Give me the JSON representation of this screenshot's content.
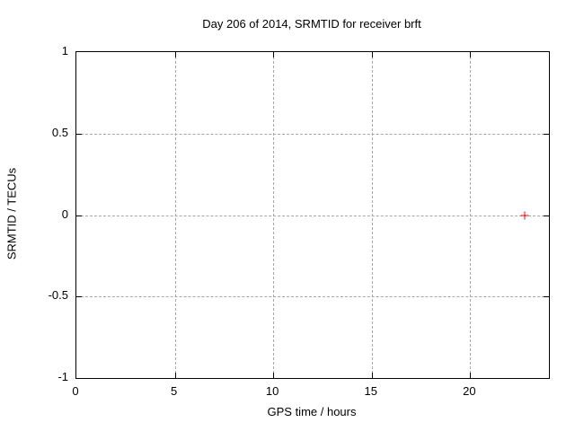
{
  "chart_data": {
    "type": "scatter",
    "title": "Day 206 of 2014, SRMTID for receiver brft",
    "xlabel": "GPS time / hours",
    "ylabel": "SRMTID / TECUs",
    "xlim": [
      0,
      24
    ],
    "ylim": [
      -1,
      1
    ],
    "xticks": [
      {
        "v": 0,
        "label": "0"
      },
      {
        "v": 5,
        "label": "5"
      },
      {
        "v": 10,
        "label": "10"
      },
      {
        "v": 15,
        "label": "15"
      },
      {
        "v": 20,
        "label": "20"
      }
    ],
    "yticks": [
      {
        "v": 1,
        "label": "1"
      },
      {
        "v": 0.5,
        "label": "0.5"
      },
      {
        "v": 0,
        "label": "0"
      },
      {
        "v": -0.5,
        "label": "-0.5"
      },
      {
        "v": -1,
        "label": "-1"
      }
    ],
    "grid": true,
    "legend": "none",
    "series": [
      {
        "name": "SRMTID",
        "marker": "plus",
        "color": "#ff0000",
        "points": [
          {
            "x": 22.75,
            "y": 0.0
          }
        ]
      }
    ],
    "colors": {
      "background": "#ffffff",
      "border": "#000000",
      "grid": "#a8a8a8",
      "text": "#000000"
    }
  }
}
